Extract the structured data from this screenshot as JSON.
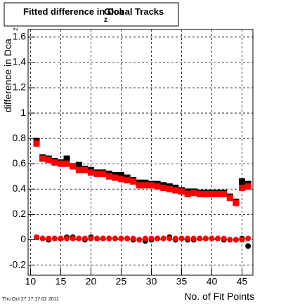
{
  "chart_data": {
    "type": "scatter",
    "title": "Fitted difference in Dca",
    "title_subscript": "z",
    "title_suffix": "Global Tracks",
    "y_label": "difference in Dca",
    "y_label_subscript": "z",
    "x_label": "No. of Fit Points",
    "timestamp": "Thu Oct 27 17:17:02 2011",
    "x": [
      11,
      12,
      13,
      14,
      15,
      16,
      17,
      18,
      19,
      20,
      21,
      22,
      23,
      24,
      25,
      26,
      27,
      28,
      29,
      30,
      31,
      32,
      33,
      34,
      35,
      36,
      37,
      38,
      39,
      40,
      41,
      42,
      43,
      44,
      45,
      46
    ],
    "series": [
      {
        "color": "#000000",
        "marker": "square",
        "values": [
          0.78,
          0.65,
          0.64,
          0.62,
          0.61,
          0.64,
          0.58,
          0.59,
          0.56,
          0.55,
          0.53,
          0.53,
          0.52,
          0.51,
          0.51,
          0.49,
          0.47,
          0.45,
          0.45,
          0.44,
          0.44,
          0.43,
          0.42,
          0.41,
          0.39,
          0.38,
          0.38,
          0.37,
          0.37,
          0.37,
          0.37,
          0.37,
          0.34,
          0.3,
          0.46,
          0.44
        ]
      },
      {
        "color": "#ff0000",
        "marker": "square",
        "values": [
          0.76,
          0.64,
          0.63,
          0.61,
          0.6,
          0.6,
          0.58,
          0.55,
          0.55,
          0.53,
          0.52,
          0.52,
          0.5,
          0.49,
          0.48,
          0.47,
          0.46,
          0.43,
          0.43,
          0.43,
          0.42,
          0.41,
          0.4,
          0.39,
          0.38,
          0.36,
          0.37,
          0.36,
          0.36,
          0.36,
          0.36,
          0.36,
          0.33,
          0.29,
          0.41,
          0.42
        ]
      },
      {
        "color": "#000000",
        "marker": "circle",
        "values": [
          0.02,
          0.01,
          0.0,
          0.01,
          0.01,
          0.02,
          0.02,
          0.01,
          0.0,
          0.02,
          0.01,
          0.01,
          0.01,
          0.01,
          0.01,
          0.01,
          0.0,
          0.0,
          -0.01,
          0.0,
          0.01,
          0.01,
          0.02,
          0.0,
          0.01,
          0.0,
          0.0,
          0.01,
          0.01,
          0.01,
          0.01,
          0.0,
          0.0,
          0.0,
          0.01,
          -0.05
        ]
      },
      {
        "color": "#ff0000",
        "marker": "circle",
        "values": [
          0.02,
          0.01,
          0.01,
          0.01,
          0.01,
          0.01,
          0.01,
          0.01,
          0.01,
          0.01,
          0.01,
          0.01,
          0.01,
          0.01,
          0.01,
          0.01,
          0.01,
          0.0,
          0.01,
          0.01,
          0.01,
          0.01,
          0.01,
          0.01,
          0.01,
          0.01,
          0.01,
          0.01,
          0.01,
          0.01,
          0.01,
          0.01,
          0.0,
          0.0,
          0.0,
          0.01
        ]
      }
    ],
    "xlim": [
      9.6,
      46.8
    ],
    "xticks": [
      10,
      15,
      20,
      25,
      30,
      35,
      40,
      45
    ],
    "ylim": [
      -0.28,
      1.66
    ],
    "yticks": [
      -0.2,
      0,
      0.2,
      0.4,
      0.6,
      0.8,
      1,
      1.2,
      1.4,
      1.6
    ],
    "grid": true
  }
}
